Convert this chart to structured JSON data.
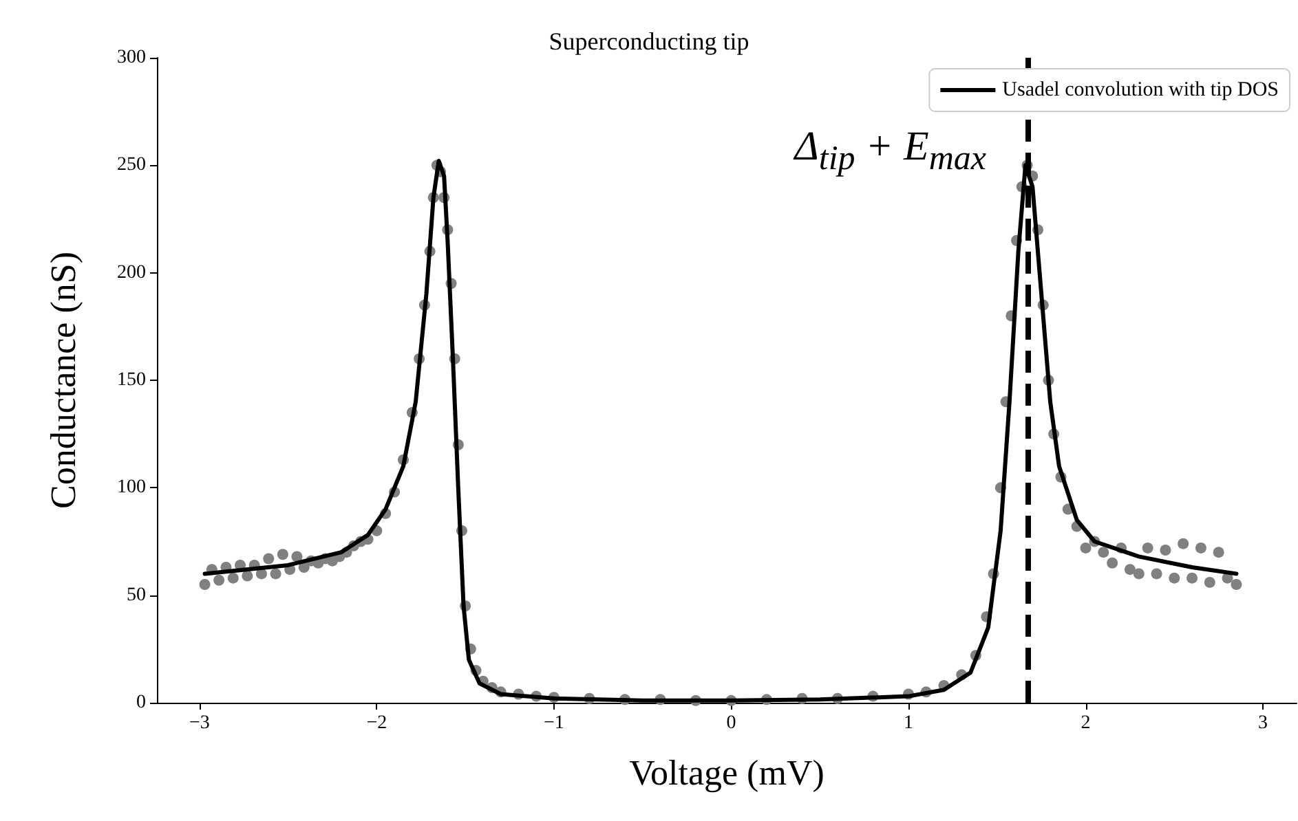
{
  "chart_data": {
    "type": "scatter",
    "title": "Superconducting tip",
    "xlabel": "Voltage (mV)",
    "ylabel": "Conductance (nS)",
    "xlim": [
      -3.24,
      3.19
    ],
    "xticks": [
      -3,
      -2,
      -1,
      0,
      1,
      2,
      3
    ],
    "ylim": [
      0,
      300
    ],
    "yticks": [
      0,
      50,
      100,
      150,
      200,
      250,
      300
    ],
    "grid": false,
    "legend": "top right",
    "marker": "circle",
    "series": [
      {
        "color": "#808080",
        "x": [
          -2.97,
          -2.93,
          -2.89,
          -2.85,
          -2.81,
          -2.77,
          -2.73,
          -2.69,
          -2.65,
          -2.61,
          -2.57,
          -2.53,
          -2.49,
          -2.45,
          -2.41,
          -2.37,
          -2.33,
          -2.29,
          -2.25,
          -2.21,
          -2.17,
          -2.13,
          -2.09,
          -2.05,
          -2.0,
          -1.95,
          -1.9,
          -1.85,
          -1.8,
          -1.76,
          -1.73,
          -1.7,
          -1.68,
          -1.66,
          -1.64,
          -1.62,
          -1.6,
          -1.58,
          -1.56,
          -1.54,
          -1.52,
          -1.5,
          -1.47,
          -1.44,
          -1.4,
          -1.35,
          -1.3,
          -1.2,
          -1.1,
          -1.0,
          -0.8,
          -0.6,
          -0.4,
          -0.2,
          0,
          0.2,
          0.4,
          0.6,
          0.8,
          1.0,
          1.1,
          1.2,
          1.3,
          1.38,
          1.44,
          1.48,
          1.52,
          1.55,
          1.58,
          1.61,
          1.64,
          1.67,
          1.7,
          1.73,
          1.76,
          1.79,
          1.82,
          1.86,
          1.9,
          1.95,
          2.0,
          2.05,
          2.1,
          2.15,
          2.2,
          2.25,
          2.3,
          2.35,
          2.4,
          2.45,
          2.5,
          2.55,
          2.6,
          2.65,
          2.7,
          2.75,
          2.8,
          2.85
        ],
        "values": [
          55,
          62,
          57,
          63,
          58,
          64,
          59,
          64,
          60,
          67,
          60,
          69,
          62,
          68,
          63,
          66,
          65,
          67,
          66,
          68,
          70,
          73,
          75,
          76,
          80,
          88,
          98,
          113,
          135,
          160,
          185,
          210,
          235,
          250,
          247,
          235,
          220,
          195,
          160,
          120,
          80,
          45,
          25,
          15,
          10,
          7,
          5,
          4,
          3,
          2.5,
          2,
          1.5,
          1.5,
          1,
          1,
          1.5,
          2,
          2,
          3,
          4,
          5,
          8,
          13,
          22,
          40,
          60,
          100,
          140,
          180,
          215,
          240,
          250,
          245,
          220,
          185,
          150,
          125,
          105,
          90,
          82,
          72,
          75,
          70,
          65,
          72,
          62,
          60,
          72,
          60,
          71,
          58,
          74,
          58,
          72,
          56,
          70,
          58,
          55
        ]
      },
      {
        "type": "line",
        "name": "Usadel convolution with tip DOS",
        "color": "#000000",
        "marker": "none",
        "line_style": "solid",
        "x": [
          -2.97,
          -2.5,
          -2.2,
          -2.05,
          -1.95,
          -1.85,
          -1.78,
          -1.72,
          -1.68,
          -1.65,
          -1.62,
          -1.6,
          -1.57,
          -1.54,
          -1.51,
          -1.48,
          -1.42,
          -1.3,
          -1.0,
          -0.5,
          0,
          0.5,
          1.0,
          1.2,
          1.35,
          1.45,
          1.52,
          1.57,
          1.62,
          1.66,
          1.7,
          1.74,
          1.8,
          1.85,
          1.95,
          2.05,
          2.3,
          2.6,
          2.85
        ],
        "values": [
          60,
          64,
          70,
          78,
          90,
          110,
          140,
          190,
          235,
          252,
          245,
          215,
          160,
          100,
          45,
          20,
          9,
          4,
          2,
          1,
          1,
          1.5,
          3,
          6,
          14,
          35,
          80,
          140,
          210,
          250,
          240,
          200,
          140,
          110,
          85,
          75,
          68,
          63,
          60
        ]
      }
    ],
    "ref_lines": [
      {
        "axis": "x",
        "value": 1.67,
        "label": "Δ$_{tip}$ + E$_{max}$",
        "color": "#000000",
        "line_style": "dashed"
      }
    ]
  }
}
